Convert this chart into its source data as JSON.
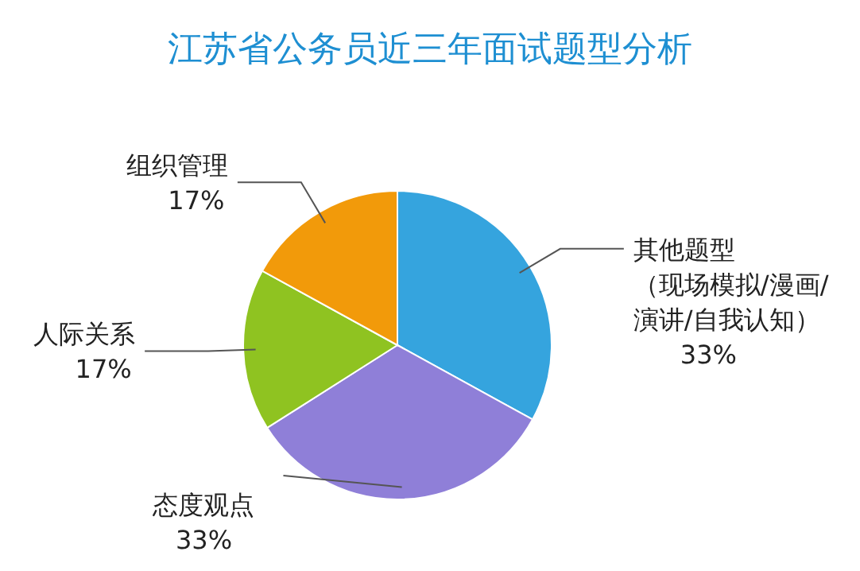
{
  "chart_data": {
    "type": "pie",
    "title": "江苏省公务员近三年面试题型分析",
    "categories": [
      "其他题型（现场模拟/漫画/演讲/自我认知）",
      "态度观点",
      "人际关系",
      "组织管理"
    ],
    "values": [
      33,
      33,
      17,
      17
    ],
    "colors": [
      "#35a4de",
      "#8f7fd8",
      "#8fc321",
      "#f29a0a"
    ],
    "value_labels": [
      "33%",
      "33%",
      "17%",
      "17%"
    ]
  }
}
